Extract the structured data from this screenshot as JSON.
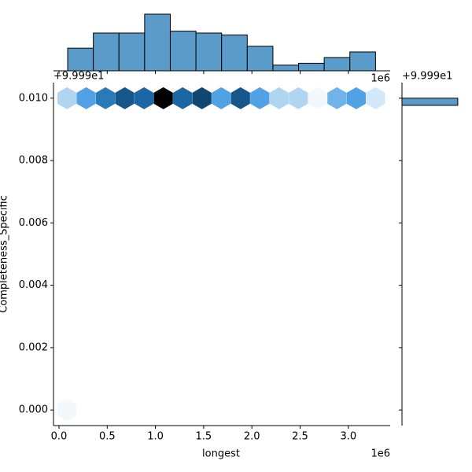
{
  "chart_data": {
    "type": "jointplot-hexbin",
    "x_label": "longest",
    "y_label": "Completeness_Specific",
    "x_offset": "1e6",
    "y_offset": "+9.999e1",
    "xlim": [
      -0.057,
      3.434
    ],
    "ylim": [
      -0.0005,
      0.0105
    ],
    "xticks": [
      {
        "value": 0,
        "label": "0.0"
      },
      0.5,
      {
        "value": 1,
        "label": "1.0"
      },
      1.5,
      {
        "value": 2,
        "label": "2.0"
      },
      2.5,
      {
        "value": 3,
        "label": "3.0"
      }
    ],
    "yticks": [
      {
        "value": 0,
        "label": "0.000"
      },
      {
        "value": 0.002,
        "label": "0.002"
      },
      {
        "value": 0.004,
        "label": "0.004"
      },
      {
        "value": 0.006,
        "label": "0.006"
      },
      {
        "value": 0.008,
        "label": "0.008"
      },
      {
        "value": 0.01,
        "label": "0.010"
      }
    ],
    "hexbin": {
      "x": [
        0.082,
        0.282,
        0.482,
        0.682,
        0.882,
        1.082,
        1.282,
        1.482,
        1.682,
        1.882,
        2.082,
        2.282,
        2.482,
        2.682,
        2.882,
        3.082,
        3.282,
        0.082
      ],
      "y": [
        0.01,
        0.01,
        0.01,
        0.01,
        0.01,
        0.01,
        0.01,
        0.01,
        0.01,
        0.01,
        0.01,
        0.01,
        0.01,
        0.01,
        0.01,
        0.01,
        0.01,
        0
      ],
      "counts": [
        3,
        6,
        8,
        10,
        9,
        14,
        9,
        11,
        6,
        10,
        6,
        3,
        3,
        1,
        5,
        6,
        2,
        1
      ],
      "colors": [
        "#f3f8fd",
        "#9ccbee",
        "#4a9fe3",
        "#1c6aa8",
        "#0e3f68",
        "#000000"
      ]
    },
    "x_marginal": {
      "bins": [
        0.09,
        0.356,
        0.622,
        0.888,
        1.154,
        1.42,
        1.686,
        1.952,
        2.218,
        2.484,
        2.75,
        3.016,
        3.282
      ],
      "counts": [
        12,
        20,
        20,
        30,
        21,
        20,
        19,
        13,
        3,
        4,
        7,
        10
      ],
      "ylim": [
        0,
        30
      ],
      "color": "#5a9bca"
    },
    "y_marginal": {
      "bins": [
        0.00977,
        0.01
      ],
      "counts": [
        179
      ],
      "xlim": [
        0,
        202
      ],
      "color": "#5a9bca"
    }
  }
}
